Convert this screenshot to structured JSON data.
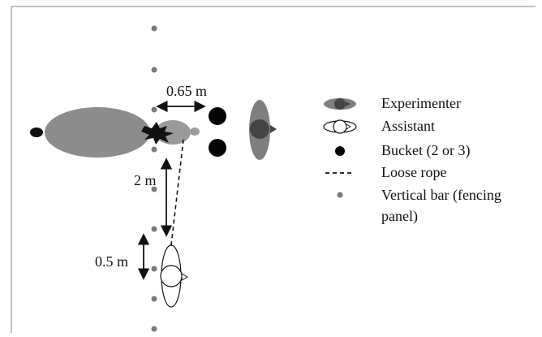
{
  "diagram": {
    "colors": {
      "frame": "#9a9a9a",
      "bar_dot": "#7a7a7a",
      "animal_body": "#8c8c8c",
      "animal_head": "#9a9a9a",
      "animal_nose": "#111111",
      "bucket": "#050505",
      "experimenter_body": "#7f7f7f",
      "experimenter_head": "#444444",
      "assistant_fill": "#ffffff",
      "line": "#111111"
    },
    "measurements": {
      "gap_bucket": "0.65 m",
      "rope_span": "2 m",
      "assistant_offset": "0.5 m"
    },
    "legend": [
      {
        "label": "Experimenter",
        "icon": "experimenter-icon"
      },
      {
        "label": "Assistant",
        "icon": "assistant-icon"
      },
      {
        "label": "Bucket (2 or 3)",
        "icon": "bucket-icon"
      },
      {
        "label": "Loose rope",
        "icon": "rope-icon"
      },
      {
        "label": "Vertical bar (fencing",
        "label_line2": "panel)",
        "icon": "bar-icon"
      }
    ]
  }
}
